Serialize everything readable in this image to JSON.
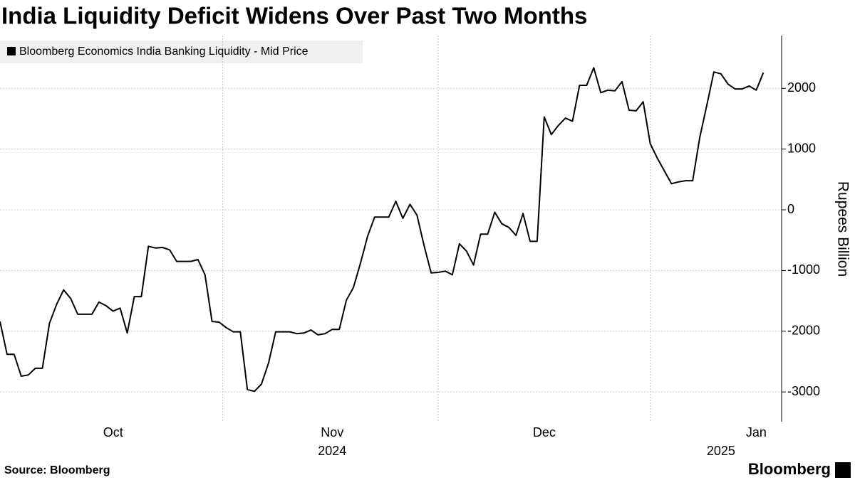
{
  "chart_data": {
    "type": "line",
    "title": "India Liquidity Deficit Widens Over Past Two Months",
    "y_label": "Rupees Billion",
    "source": "Source: Bloomberg",
    "brand": "Bloomberg",
    "categories": [
      null,
      null,
      null,
      null,
      null,
      null,
      null,
      null,
      null,
      null,
      null,
      null,
      null,
      null,
      null,
      null,
      "Oct",
      null,
      null,
      null,
      null,
      null,
      null,
      null,
      null,
      null,
      null,
      null,
      null,
      null,
      null,
      null,
      null,
      null,
      null,
      null,
      null,
      null,
      null,
      null,
      null,
      null,
      null,
      null,
      null,
      null,
      null,
      "Nov",
      null,
      null,
      null,
      null,
      null,
      null,
      null,
      null,
      null,
      null,
      null,
      null,
      null,
      null,
      null,
      null,
      null,
      null,
      null,
      null,
      null,
      null,
      null,
      null,
      null,
      null,
      null,
      null,
      null,
      "Dec",
      null,
      null,
      null,
      null,
      null,
      null,
      null,
      null,
      null,
      null,
      null,
      null,
      null,
      null,
      null,
      null,
      null,
      null,
      null,
      null,
      null,
      null,
      null,
      null,
      null,
      null,
      null,
      null,
      null,
      "Jan",
      null
    ],
    "year_labels": [
      null,
      null,
      null,
      null,
      null,
      null,
      null,
      null,
      null,
      null,
      null,
      null,
      null,
      null,
      null,
      null,
      null,
      null,
      null,
      null,
      null,
      null,
      null,
      null,
      null,
      null,
      null,
      null,
      null,
      null,
      null,
      null,
      null,
      null,
      null,
      null,
      null,
      null,
      null,
      null,
      null,
      null,
      null,
      null,
      null,
      null,
      null,
      "2024",
      null,
      null,
      null,
      null,
      null,
      null,
      null,
      null,
      null,
      null,
      null,
      null,
      null,
      null,
      null,
      null,
      null,
      null,
      null,
      null,
      null,
      null,
      null,
      null,
      null,
      null,
      null,
      null,
      null,
      null,
      null,
      null,
      null,
      null,
      null,
      null,
      null,
      null,
      null,
      null,
      null,
      null,
      null,
      null,
      null,
      null,
      null,
      null,
      null,
      null,
      null,
      null,
      null,
      null,
      "2025",
      null,
      null,
      null,
      null,
      null,
      null
    ],
    "series": [
      {
        "name": "Bloomberg Economics India Banking Liquidity - Mid Price",
        "color": "#000000",
        "values": [
          -1840,
          -2380,
          -2380,
          -2740,
          -2720,
          -2610,
          -2610,
          -1870,
          -1560,
          -1320,
          -1460,
          -1720,
          -1720,
          -1720,
          -1520,
          -1580,
          -1670,
          -1620,
          -2030,
          -1430,
          -1430,
          -600,
          -630,
          -620,
          -660,
          -850,
          -850,
          -850,
          -820,
          -1070,
          -1840,
          -1850,
          -1940,
          -2010,
          -2010,
          -2960,
          -2990,
          -2870,
          -2520,
          -2010,
          -2010,
          -2010,
          -2040,
          -2030,
          -1980,
          -2060,
          -2040,
          -1970,
          -1970,
          -1490,
          -1280,
          -880,
          -440,
          -120,
          -120,
          -120,
          140,
          -140,
          90,
          -90,
          -590,
          -1040,
          -1030,
          -1010,
          -1070,
          -560,
          -680,
          -910,
          -400,
          -400,
          -40,
          -230,
          -290,
          -420,
          -60,
          -520,
          -520,
          1530,
          1240,
          1390,
          1510,
          1460,
          2050,
          2050,
          2340,
          1930,
          1970,
          1960,
          2110,
          1640,
          1630,
          1780,
          1090,
          850,
          640,
          430,
          460,
          480,
          480,
          1190,
          1720,
          2270,
          2240,
          2070,
          1990,
          1990,
          2040,
          1970,
          2260
        ]
      }
    ],
    "ylim": [
      -3490,
      2870
    ],
    "yticks": [
      -3000,
      -2000,
      -1000,
      0,
      1000,
      2000
    ],
    "grid": true,
    "legend": "top-left"
  }
}
